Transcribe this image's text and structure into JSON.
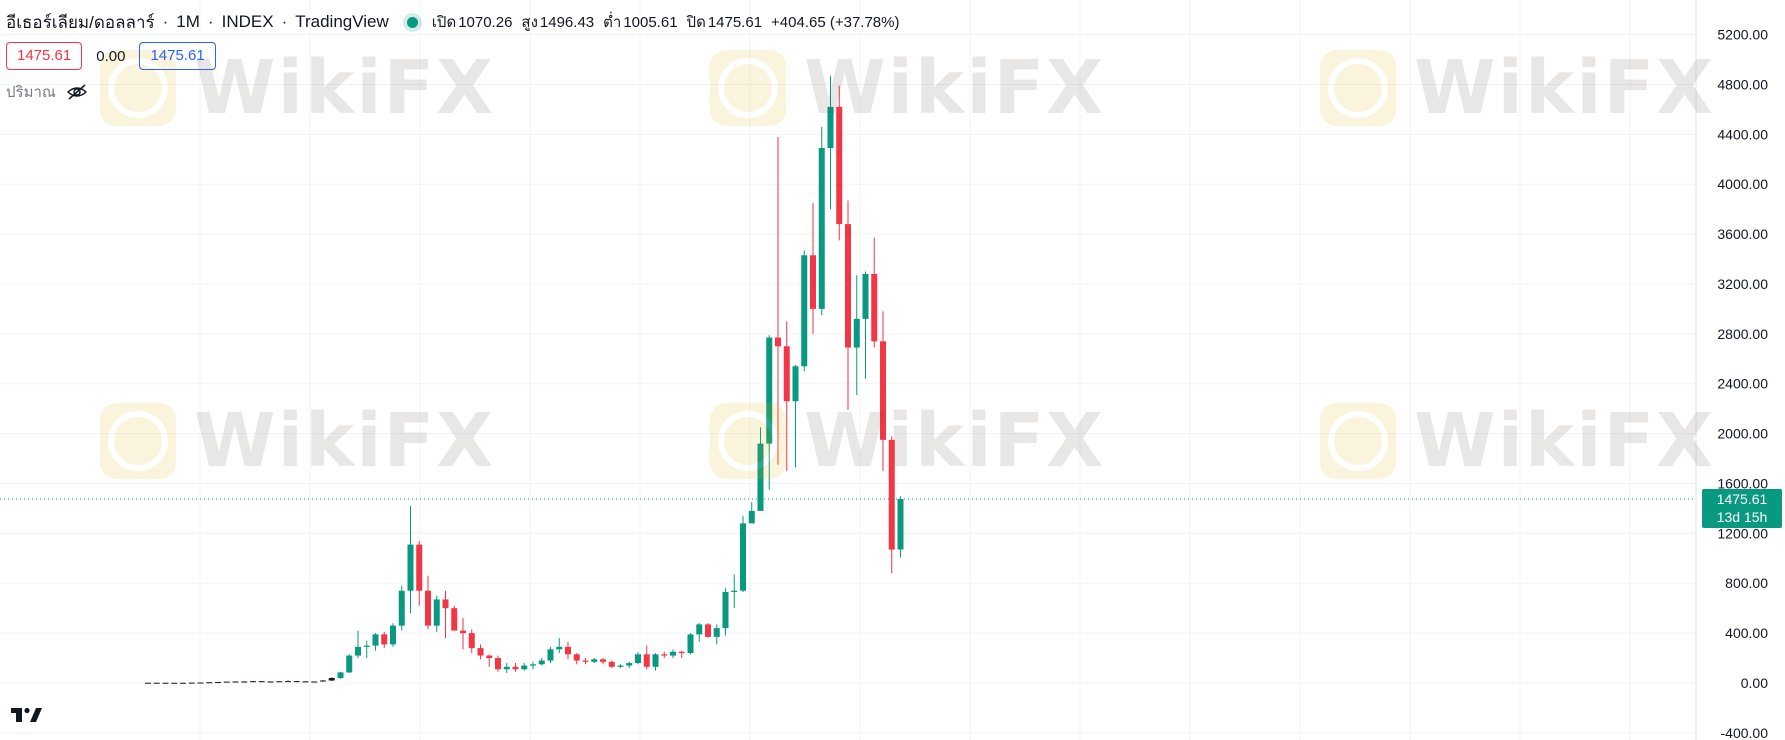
{
  "header": {
    "symbol": "อีเธอร์เลียม/ดอลลาร์",
    "interval": "1M",
    "exchange": "INDEX",
    "source": "TradingView",
    "separator": "·",
    "open_label": "เปิด",
    "open": "1070.26",
    "high_label": "สูง",
    "high": "1496.43",
    "low_label": "ต่ำ",
    "low": "1005.61",
    "close_label": "ปิด",
    "close": "1475.61",
    "change": "+404.65 (+37.78%)"
  },
  "price_boxes": {
    "bid": "1475.61",
    "spread": "0.00",
    "ask": "1475.61"
  },
  "volume_label": "ปริมาณ",
  "price_tag": {
    "price": "1475.61",
    "countdown": "13d 15h"
  },
  "watermark": "WikiFX",
  "colors": {
    "up": "#089981",
    "down": "#f23645",
    "grid": "#f0f3fa",
    "axis_text": "#131722"
  },
  "chart_data": {
    "type": "candlestick",
    "title": "",
    "xlabel": "",
    "ylabel": "",
    "ylim": [
      -400,
      5400
    ],
    "yticks": [
      "5200.00",
      "4800.00",
      "4400.00",
      "4000.00",
      "3600.00",
      "3200.00",
      "2800.00",
      "2400.00",
      "2000.00",
      "1600.00",
      "1200.00",
      "800.00",
      "400.00",
      "0.00",
      "-400.00"
    ],
    "last_price": 1475.61,
    "candles": [
      [
        2.5,
        2.8,
        1.8,
        2.2
      ],
      [
        2.2,
        2.4,
        1.6,
        2.0
      ],
      [
        2.0,
        2.2,
        1.5,
        1.8
      ],
      [
        1.8,
        2.1,
        1.5,
        1.9
      ],
      [
        1.9,
        2.3,
        1.7,
        2.1
      ],
      [
        2.1,
        3.5,
        2.0,
        3.0
      ],
      [
        3.0,
        4.5,
        2.5,
        4.0
      ],
      [
        4.0,
        7.0,
        3.5,
        6.0
      ],
      [
        6.0,
        8.5,
        5.5,
        7.5
      ],
      [
        7.5,
        11.5,
        7.0,
        11.0
      ],
      [
        11.0,
        13.0,
        9.0,
        12.0
      ],
      [
        12.0,
        14.0,
        10.0,
        11.5
      ],
      [
        11.5,
        16.0,
        11.0,
        14.5
      ],
      [
        14.5,
        15.5,
        11.0,
        12.0
      ],
      [
        12.0,
        13.0,
        10.0,
        11.0
      ],
      [
        11.0,
        15.0,
        10.5,
        14.0
      ],
      [
        14.0,
        20.0,
        13.0,
        15.0
      ],
      [
        15.0,
        17.0,
        12.0,
        13.0
      ],
      [
        13.0,
        14.5,
        9.0,
        10.0
      ],
      [
        10.0,
        13.0,
        8.0,
        12.0
      ],
      [
        12.0,
        25.0,
        11.0,
        20.0
      ],
      [
        20.0,
        45.0,
        15.0,
        40.0
      ],
      [
        40.0,
        90.0,
        35.0,
        85.0
      ],
      [
        85.0,
        230.0,
        80.0,
        220.0
      ],
      [
        220.0,
        420.0,
        200.0,
        290.0
      ],
      [
        290.0,
        340.0,
        200.0,
        300.0
      ],
      [
        300.0,
        400.0,
        260.0,
        390.0
      ],
      [
        390.0,
        410.0,
        280.0,
        310.0
      ],
      [
        310.0,
        480.0,
        290.0,
        460.0
      ],
      [
        460.0,
        780.0,
        420.0,
        740.0
      ],
      [
        740.0,
        1420.0,
        560.0,
        1110.0
      ],
      [
        1110.0,
        1140.0,
        620.0,
        740.0
      ],
      [
        740.0,
        860.0,
        430.0,
        460.0
      ],
      [
        460.0,
        700.0,
        410.0,
        670.0
      ],
      [
        670.0,
        740.0,
        360.0,
        600.0
      ],
      [
        600.0,
        620.0,
        430.0,
        420.0
      ],
      [
        420.0,
        520.0,
        270.0,
        400.0
      ],
      [
        400.0,
        430.0,
        240.0,
        280.0
      ],
      [
        280.0,
        310.0,
        190.0,
        220.0
      ],
      [
        220.0,
        230.0,
        130.0,
        200.0
      ],
      [
        200.0,
        220.0,
        90.0,
        110.0
      ],
      [
        110.0,
        160.0,
        80.0,
        130.0
      ],
      [
        130.0,
        160.0,
        90.0,
        110.0
      ],
      [
        110.0,
        160.0,
        100.0,
        140.0
      ],
      [
        140.0,
        170.0,
        110.0,
        150.0
      ],
      [
        150.0,
        200.0,
        140.0,
        180.0
      ],
      [
        180.0,
        290.0,
        160.0,
        270.0
      ],
      [
        270.0,
        360.0,
        240.0,
        290.0
      ],
      [
        290.0,
        330.0,
        190.0,
        230.0
      ],
      [
        230.0,
        240.0,
        150.0,
        180.0
      ],
      [
        180.0,
        200.0,
        150.0,
        170.0
      ],
      [
        170.0,
        200.0,
        160.0,
        190.0
      ],
      [
        190.0,
        200.0,
        150.0,
        170.0
      ],
      [
        170.0,
        180.0,
        120.0,
        130.0
      ],
      [
        130.0,
        150.0,
        120.0,
        140.0
      ],
      [
        140.0,
        170.0,
        120.0,
        160.0
      ],
      [
        160.0,
        250.0,
        150.0,
        230.0
      ],
      [
        230.0,
        300.0,
        110.0,
        130.0
      ],
      [
        130.0,
        240.0,
        100.0,
        230.0
      ],
      [
        230.0,
        250.0,
        200.0,
        220.0
      ],
      [
        220.0,
        270.0,
        200.0,
        250.0
      ],
      [
        250.0,
        260.0,
        200.0,
        240.0
      ],
      [
        240.0,
        400.0,
        230.0,
        390.0
      ],
      [
        390.0,
        480.0,
        330.0,
        470.0
      ],
      [
        470.0,
        480.0,
        360.0,
        370.0
      ],
      [
        370.0,
        470.0,
        310.0,
        440.0
      ],
      [
        440.0,
        760.0,
        380.0,
        730.0
      ],
      [
        730.0,
        870.0,
        600.0,
        740.0
      ],
      [
        740.0,
        1340.0,
        730.0,
        1280.0
      ],
      [
        1280.0,
        1450.0,
        1300.0,
        1380.0
      ],
      [
        1380.0,
        2050.0,
        1420.0,
        1920.0
      ],
      [
        1920.0,
        2790.0,
        1550.0,
        2770.0
      ],
      [
        2770.0,
        4380.0,
        1750.0,
        2700.0
      ],
      [
        2700.0,
        2900.0,
        1700.0,
        2260.0
      ],
      [
        2260.0,
        2550.0,
        1730.0,
        2540.0
      ],
      [
        2540.0,
        3470.0,
        2500.0,
        3430.0
      ],
      [
        3430.0,
        3850.0,
        2800.0,
        3000.0
      ],
      [
        3000.0,
        4460.0,
        2950.0,
        4290.0
      ],
      [
        4290.0,
        4870.0,
        3800.0,
        4620.0
      ],
      [
        4620.0,
        4790.0,
        3550.0,
        3680.0
      ],
      [
        3680.0,
        3870.0,
        2190.0,
        2690.0
      ],
      [
        2690.0,
        3270.0,
        2310.0,
        2920.0
      ],
      [
        2920.0,
        3300.0,
        2440.0,
        3280.0
      ],
      [
        3280.0,
        3570.0,
        2690.0,
        2740.0
      ],
      [
        2740.0,
        2980.0,
        1700.0,
        1950.0
      ],
      [
        1950.0,
        1980.0,
        880.0,
        1070.0
      ],
      [
        1070.26,
        1496.43,
        1005.61,
        1475.61
      ]
    ]
  }
}
